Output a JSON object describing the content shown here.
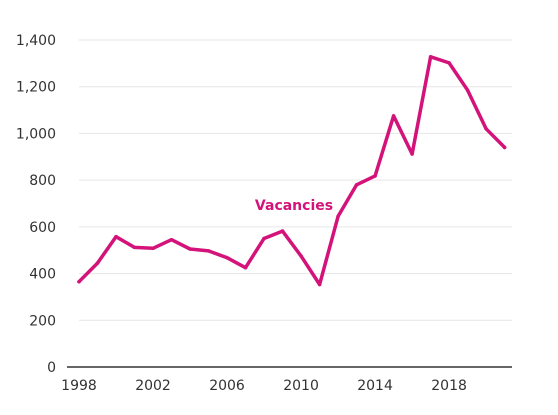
{
  "chart_data": {
    "type": "line",
    "title": "",
    "xlabel": "",
    "ylabel": "",
    "x": [
      1998,
      1999,
      2000,
      2001,
      2002,
      2003,
      2004,
      2005,
      2006,
      2007,
      2008,
      2009,
      2010,
      2011,
      2012,
      2013,
      2014,
      2015,
      2016,
      2017,
      2018,
      2019,
      2020,
      2021
    ],
    "series": [
      {
        "name": "Vacancies",
        "color": "#d4137a",
        "values": [
          365,
          445,
          558,
          512,
          508,
          545,
          505,
          497,
          468,
          425,
          550,
          582,
          475,
          353,
          645,
          780,
          818,
          1075,
          912,
          1328,
          1302,
          1185,
          1020,
          940
        ]
      }
    ],
    "xticks": [
      1998,
      2002,
      2006,
      2010,
      2014,
      2018
    ],
    "yticks": [
      0,
      200,
      400,
      600,
      800,
      1000,
      1200,
      1400
    ],
    "ytick_labels": [
      "0",
      "200",
      "400",
      "600",
      "800",
      "1,000",
      "1,200",
      "1,400"
    ],
    "xlim": [
      1998,
      2021.4
    ],
    "ylim": [
      0,
      1400
    ],
    "grid": true,
    "legend": "inline label near series"
  }
}
